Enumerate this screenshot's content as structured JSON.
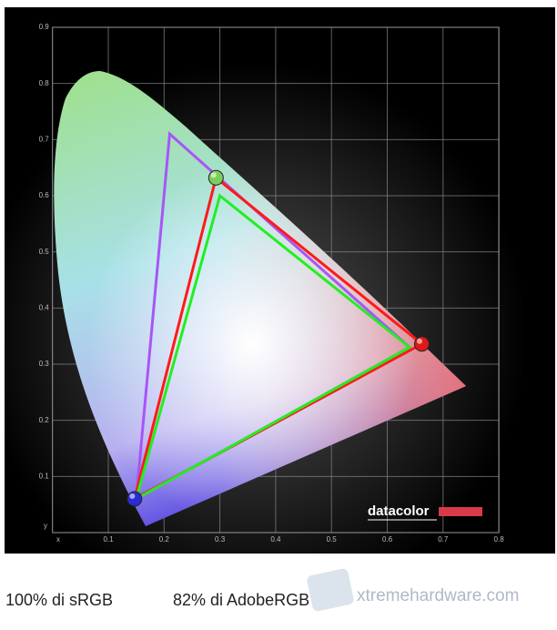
{
  "chart_data": {
    "type": "line",
    "x_label": "x",
    "y_label": "y",
    "xlim": [
      0,
      0.8
    ],
    "ylim": [
      0,
      0.9
    ],
    "xticks": [
      0.1,
      0.2,
      0.3,
      0.4,
      0.5,
      0.6,
      0.7,
      0.8
    ],
    "yticks": [
      0.1,
      0.2,
      0.3,
      0.4,
      0.5,
      0.6,
      0.7,
      0.8,
      0.9
    ],
    "grid": true,
    "series": [
      {
        "color": "#a855f7",
        "x": [
          0.21,
          0.64,
          0.15
        ],
        "values": [
          0.71,
          0.33,
          0.06
        ]
      },
      {
        "color": "#ff1a1a",
        "x": [
          0.293,
          0.662,
          0.147
        ],
        "values": [
          0.632,
          0.336,
          0.06
        ],
        "marker_colors": [
          "#7ccf5a",
          "#e01818",
          "#2a2ad8"
        ]
      },
      {
        "color": "#22ee22",
        "x": [
          0.3,
          0.64,
          0.15
        ],
        "values": [
          0.6,
          0.33,
          0.06
        ]
      }
    ],
    "logo": "datacolor",
    "caption": [
      "100% di sRGB",
      "82% di AdobeRGB"
    ],
    "watermark": "xtremehardware.com"
  }
}
